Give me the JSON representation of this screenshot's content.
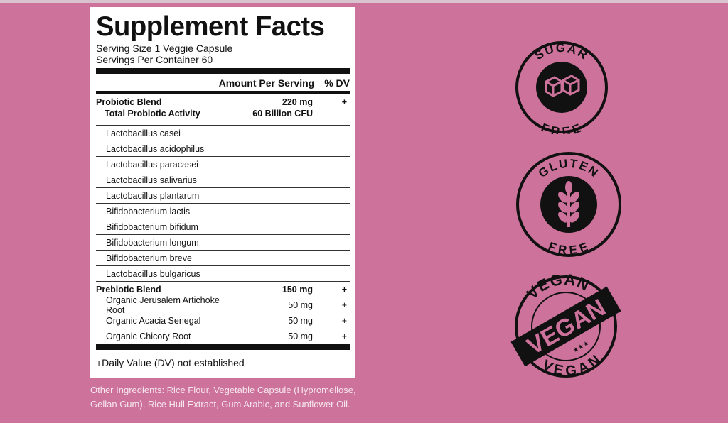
{
  "label": {
    "title": "Supplement Facts",
    "serving_size": "Serving Size  1 Veggie Capsule",
    "servings_per_container": "Servings Per Container  60",
    "header": {
      "amount": "Amount Per Serving",
      "dv": "% DV"
    },
    "probiotic": {
      "name": "Probiotic Blend",
      "amount": "220 mg",
      "dv": "+",
      "sub_name": "Total Probiotic Activity",
      "sub_amount": "60 Billion CFU"
    },
    "strains": [
      "Lactobacillus casei",
      "Lactobacillus acidophilus",
      "Lactobacillus paracasei",
      "Lactobacillus salivarius",
      "Lactobacillus plantarum",
      "Bifidobacterium lactis",
      "Bifidobacterium bifidum",
      "Bifidobacterium longum",
      "Bifidobacterium breve",
      "Lactobacillus bulgaricus"
    ],
    "prebiotic": {
      "name": "Prebiotic Blend",
      "amount": "150 mg",
      "dv": "+"
    },
    "prebiotic_items": [
      {
        "name": "Organic Jerusalem Artichoke Root",
        "amount": "50 mg",
        "dv": "+"
      },
      {
        "name": "Organic Acacia Senegal",
        "amount": "50 mg",
        "dv": "+"
      },
      {
        "name": "Organic Chicory Root",
        "amount": "50 mg",
        "dv": "+"
      }
    ],
    "footnote": "+Daily Value (DV) not established"
  },
  "other_ingredients": "Other Ingredients: Rice Flour, Vegetable Capsule (Hypromellose, Gellan Gum), Rice Hull Extract, Gum Arabic, and Sunflower Oil.",
  "badges": {
    "sugar": {
      "top": "SUGAR",
      "bottom": "FREE",
      "icon": "sugar-cubes-icon"
    },
    "gluten": {
      "top": "GLUTEN",
      "bottom": "FREE",
      "icon": "wheat-icon"
    },
    "vegan": {
      "top": "VEGAN",
      "center": "VEGAN",
      "left": "VEGAN",
      "right": "VEGAN",
      "stars": "★★★"
    }
  },
  "colors": {
    "background": "#cd729b",
    "ink": "#111111"
  }
}
